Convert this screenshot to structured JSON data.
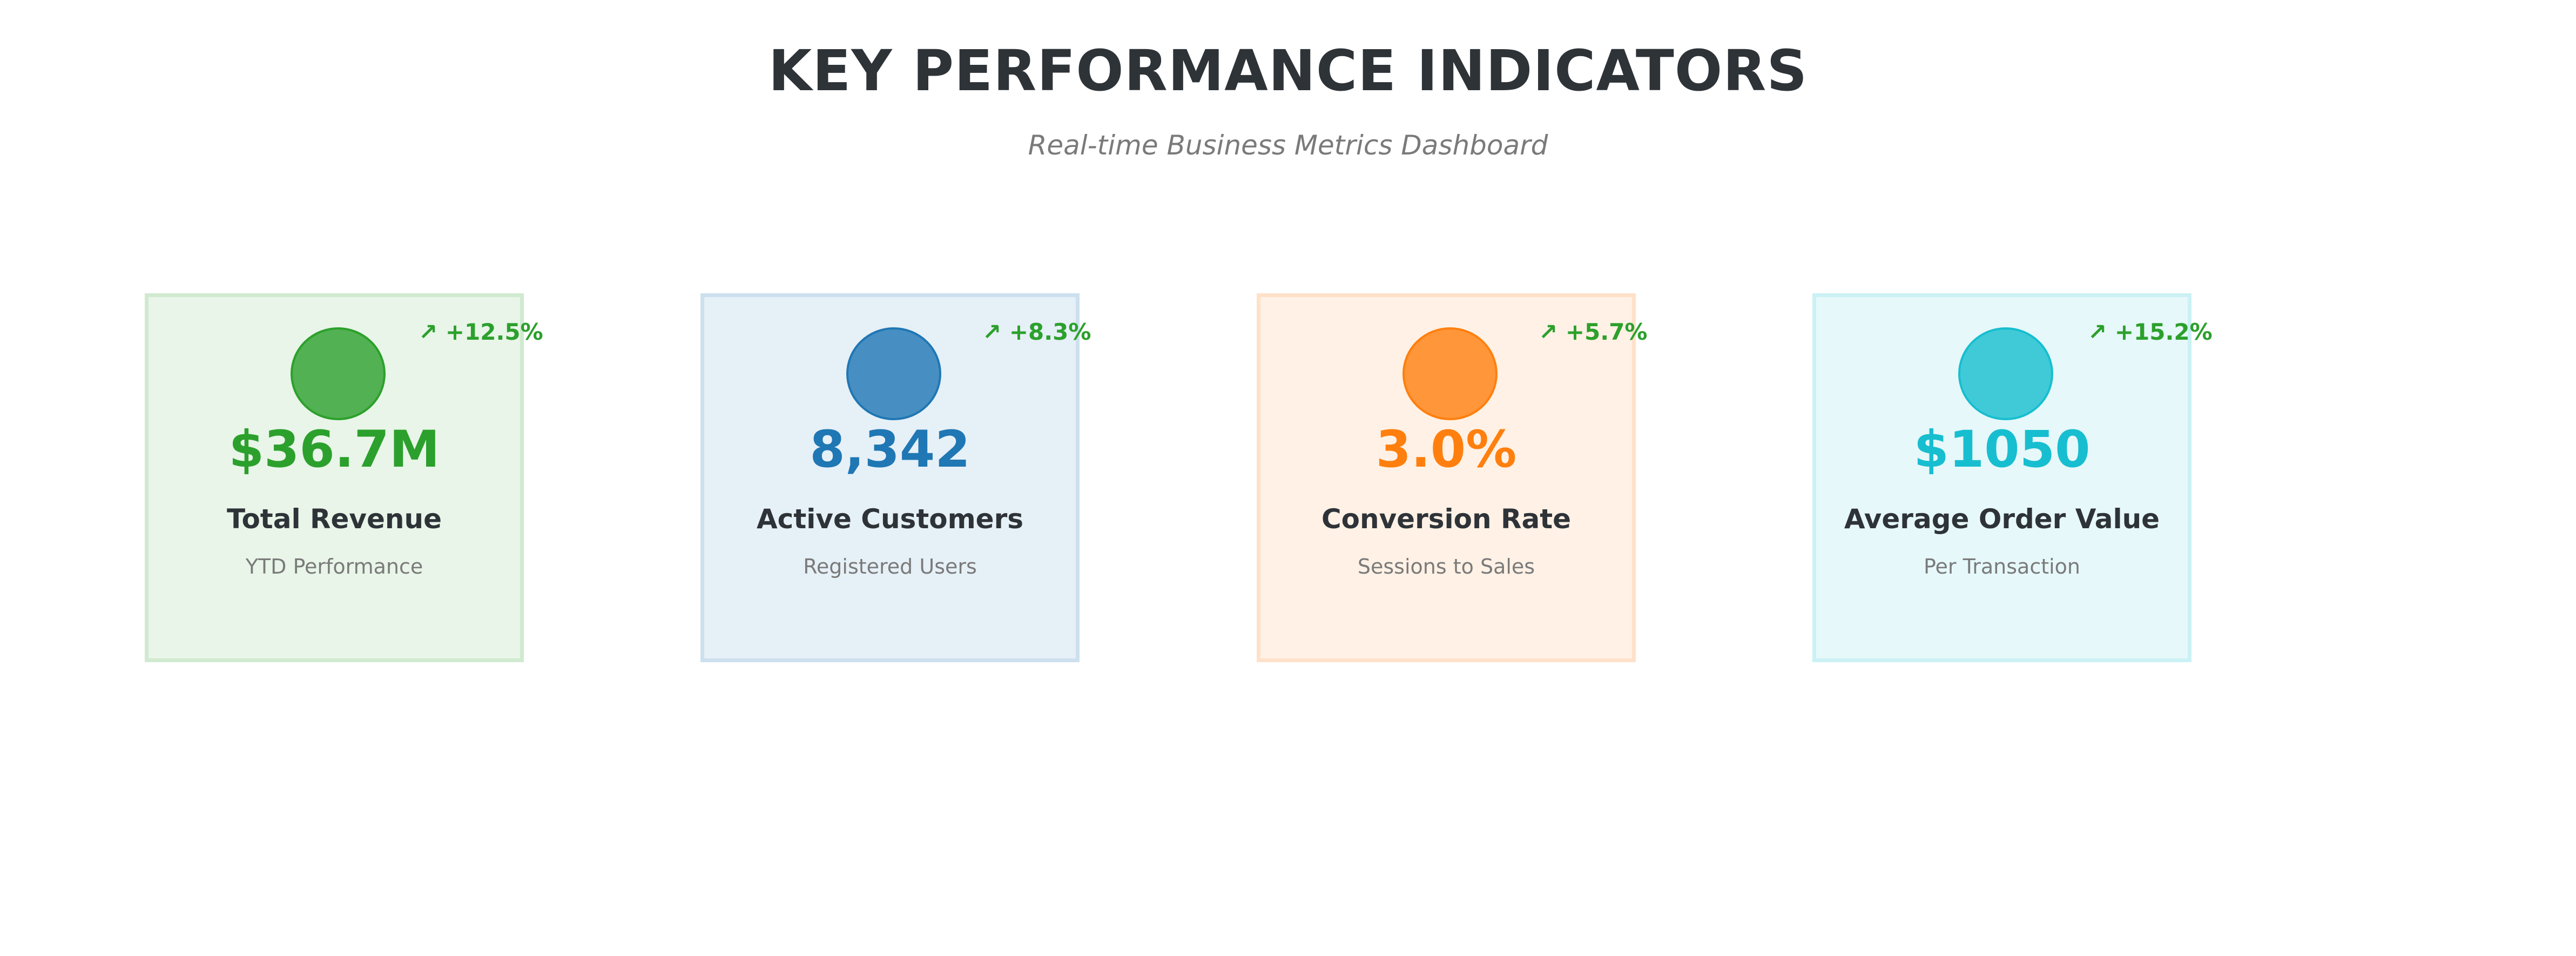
{
  "header": {
    "title": "KEY PERFORMANCE INDICATORS",
    "subtitle": "Real-time Business Metrics Dashboard"
  },
  "cards": [
    {
      "value": "$36.7M",
      "label": "Total Revenue",
      "sublabel": "YTD Performance",
      "trend": "↗ +12.5%",
      "color": "#2ca02c",
      "icon": "green-circle-icon"
    },
    {
      "value": "8,342",
      "label": "Active Customers",
      "sublabel": "Registered Users",
      "trend": "↗ +8.3%",
      "color": "#1f77b4",
      "icon": "blue-circle-icon"
    },
    {
      "value": "3.0%",
      "label": "Conversion Rate",
      "sublabel": "Sessions to Sales",
      "trend": "↗ +5.7%",
      "color": "#ff7f0e",
      "icon": "orange-circle-icon"
    },
    {
      "value": "$1050",
      "label": "Average Order Value",
      "sublabel": "Per Transaction",
      "trend": "↗ +15.2%",
      "color": "#17becf",
      "icon": "cyan-circle-icon"
    }
  ],
  "trend_color": "#2ca02c"
}
